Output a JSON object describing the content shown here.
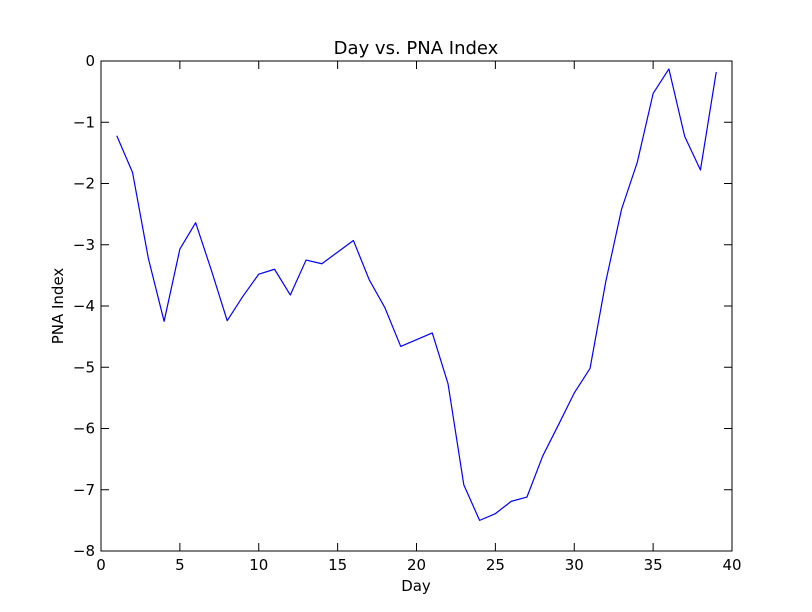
{
  "chart_data": {
    "type": "line",
    "title": "Day vs. PNA Index",
    "xlabel": "Day",
    "ylabel": "PNA Index",
    "xlim": [
      0,
      40
    ],
    "ylim": [
      -8,
      0
    ],
    "xticks": [
      0,
      5,
      10,
      15,
      20,
      25,
      30,
      35,
      40
    ],
    "yticks": [
      0,
      -1,
      -2,
      -3,
      -4,
      -5,
      -6,
      -7,
      -8
    ],
    "xtick_labels": [
      "0",
      "5",
      "10",
      "15",
      "20",
      "25",
      "30",
      "35",
      "40"
    ],
    "ytick_labels": [
      "0",
      "−1",
      "−2",
      "−3",
      "−4",
      "−5",
      "−6",
      "−7",
      "−8"
    ],
    "grid": false,
    "color": "#0000ff",
    "x": [
      1,
      2,
      3,
      4,
      5,
      6,
      7,
      8,
      9,
      10,
      11,
      12,
      13,
      14,
      15,
      16,
      17,
      18,
      19,
      20,
      21,
      22,
      23,
      24,
      25,
      26,
      27,
      28,
      29,
      30,
      31,
      32,
      33,
      34,
      35,
      36,
      37,
      38,
      39
    ],
    "y": [
      -1.22,
      -1.82,
      -3.22,
      -4.25,
      -3.07,
      -2.64,
      -3.42,
      -4.24,
      -3.84,
      -3.48,
      -3.4,
      -3.82,
      -3.25,
      -3.31,
      -3.12,
      -2.93,
      -3.57,
      -4.03,
      -4.66,
      -4.55,
      -4.44,
      -5.27,
      -6.92,
      -7.5,
      -7.39,
      -7.19,
      -7.12,
      -6.45,
      -5.94,
      -5.42,
      -5.02,
      -3.6,
      -2.42,
      -1.65,
      -0.53,
      -0.13,
      -1.23,
      -1.78,
      -0.18
    ]
  }
}
